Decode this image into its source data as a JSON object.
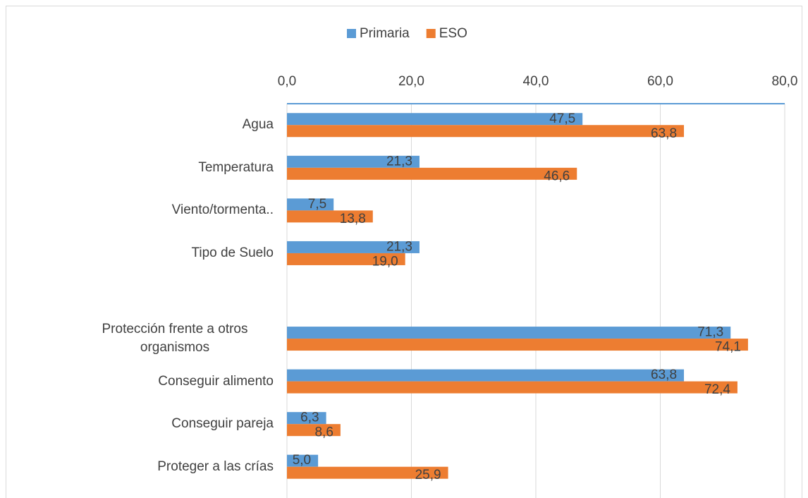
{
  "chart_data": {
    "type": "bar",
    "orientation": "horizontal",
    "categories": [
      "Agua",
      "Temperatura",
      "Viento/tormenta..",
      "Tipo de Suelo",
      null,
      "Protección frente a otros organismos",
      "Conseguir alimento",
      "Conseguir pareja",
      "Proteger a las crías"
    ],
    "series": [
      {
        "name": "Primaria",
        "color": "#5b9bd5",
        "values": [
          47.5,
          21.3,
          7.5,
          21.3,
          null,
          71.3,
          63.8,
          6.3,
          5.0
        ],
        "value_labels": [
          "47,5",
          "21,3",
          "7,5",
          "21,3",
          null,
          "71,3",
          "63,8",
          "6,3",
          "5,0"
        ]
      },
      {
        "name": "ESO",
        "color": "#ed7d31",
        "values": [
          63.8,
          46.6,
          13.8,
          19.0,
          null,
          74.1,
          72.4,
          8.6,
          25.9
        ],
        "value_labels": [
          "63,8",
          "46,6",
          "13,8",
          "19,0",
          null,
          "74,1",
          "72,4",
          "8,6",
          "25,9"
        ]
      }
    ],
    "xlim": [
      0,
      80
    ],
    "xticks": [
      {
        "value": 0,
        "label": "0,0"
      },
      {
        "value": 20,
        "label": "20,0"
      },
      {
        "value": 40,
        "label": "40,0"
      },
      {
        "value": 60,
        "label": "60,0"
      },
      {
        "value": 80,
        "label": "80,0"
      }
    ],
    "grid": true,
    "legend": "top"
  }
}
